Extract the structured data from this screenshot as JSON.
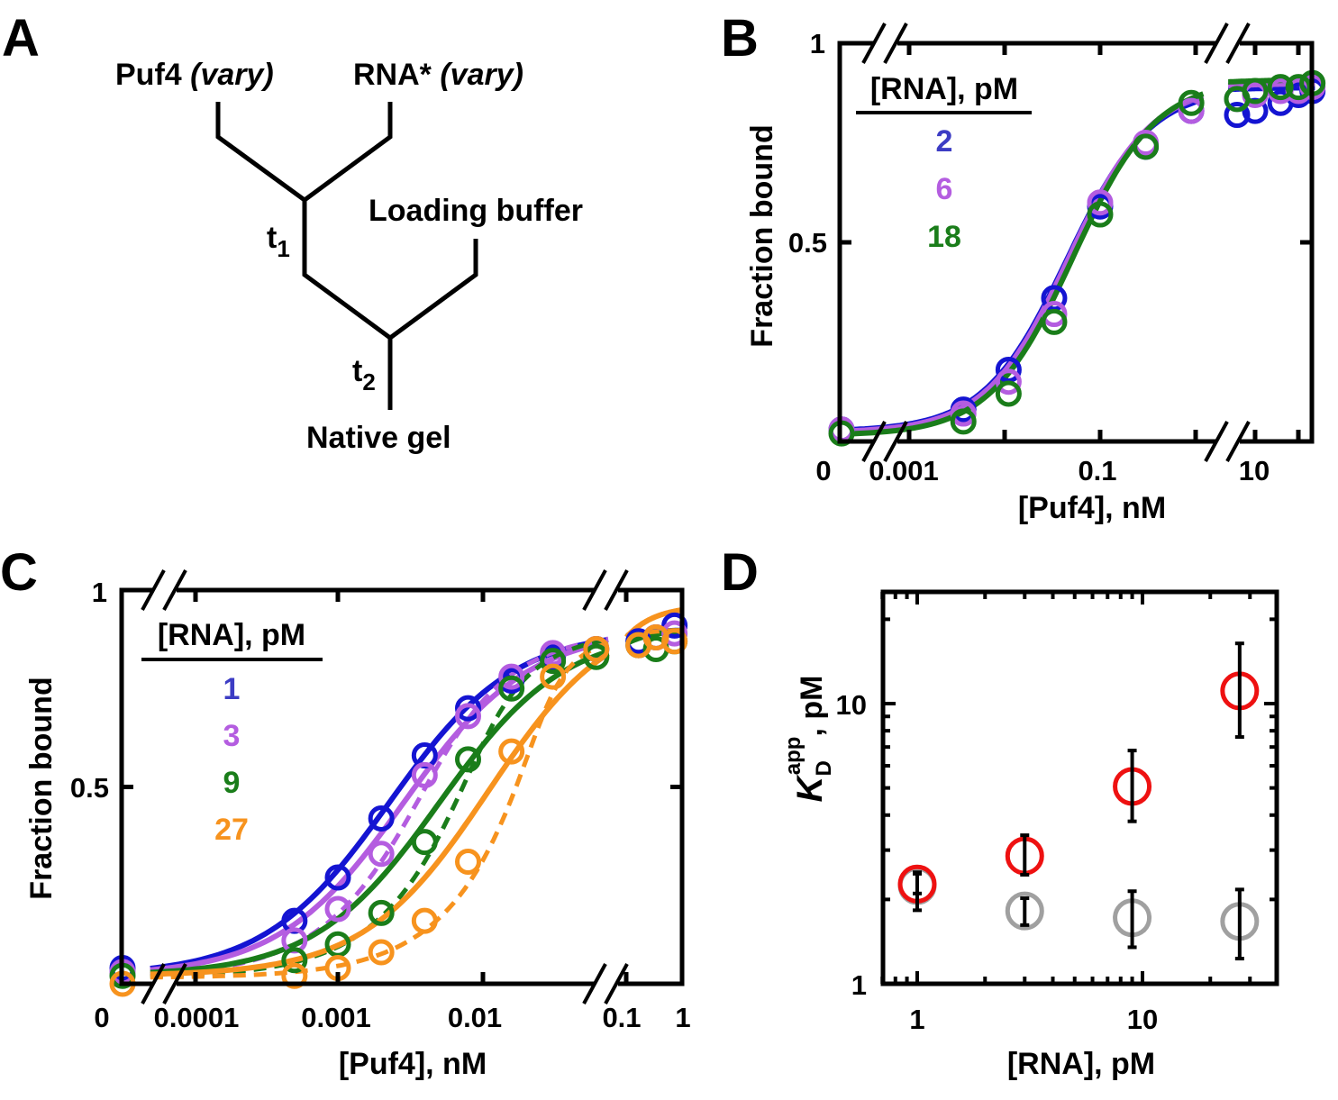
{
  "diagram": {
    "panel_label": "A",
    "puf4": "Puf4",
    "puf4_vary": "(vary)",
    "rna": "RNA*",
    "rna_vary": "(vary)",
    "loading_buffer": "Loading buffer",
    "t": "t",
    "t1_sub": "1",
    "t2_sub": "2",
    "native_gel": "Native gel"
  },
  "chart_data": [
    {
      "panel_label": "B",
      "type": "line",
      "xlabel": "[Puf4], nM",
      "ylabel": "Fraction bound",
      "x_scale": "log, broken axis with zero point",
      "xticks": [
        "0",
        "0.001",
        "0.1",
        "10"
      ],
      "yticks": [
        "1",
        "0.5"
      ],
      "ylim": [
        0,
        1
      ],
      "legend_title": "[RNA], pM",
      "legend_placement": "top-left",
      "x": [
        0,
        0.0037,
        0.011,
        0.033,
        0.1,
        0.3,
        0.9,
        7.5,
        10,
        15,
        20,
        25
      ],
      "series": [
        {
          "name": "2",
          "color": "#1414d2",
          "label_color": "#3c3cc4",
          "values": [
            0.03,
            0.08,
            0.18,
            0.36,
            0.59,
            0.74,
            0.83,
            0.82,
            0.83,
            0.85,
            0.87,
            0.88
          ]
        },
        {
          "name": "6",
          "color": "#b45de0",
          "label_color": "#b45de0",
          "values": [
            0.03,
            0.07,
            0.15,
            0.32,
            0.6,
            0.75,
            0.83,
            0.86,
            0.87,
            0.88,
            0.88,
            0.89
          ]
        },
        {
          "name": "18",
          "color": "#1a7d1a",
          "label_color": "#1a7d1a",
          "values": [
            0.02,
            0.05,
            0.12,
            0.3,
            0.57,
            0.74,
            0.85,
            0.86,
            0.88,
            0.89,
            0.89,
            0.9
          ]
        }
      ]
    },
    {
      "panel_label": "C",
      "type": "line",
      "xlabel": "[Puf4], nM",
      "ylabel": "Fraction bound",
      "x_scale": "log, broken axis with zero point",
      "xticks": [
        "0",
        "0.0001",
        "0.001",
        "0.01",
        "0.1",
        "1"
      ],
      "yticks": [
        "1",
        "0.5"
      ],
      "ylim": [
        0,
        1
      ],
      "legend_title": "[RNA], pM",
      "legend_placement": "top-left",
      "line_styles": [
        "solid",
        "dashed"
      ],
      "x": [
        0,
        0.0005,
        0.001,
        0.002,
        0.004,
        0.008,
        0.016,
        0.031,
        0.062,
        0.19,
        0.37,
        0.75
      ],
      "series": [
        {
          "name": "1",
          "color": "#1414d2",
          "label_color": "#3c3cc4",
          "values": [
            0.04,
            0.16,
            0.27,
            0.42,
            0.58,
            0.7,
            0.77,
            0.83,
            0.85,
            0.87,
            0.88,
            0.91
          ]
        },
        {
          "name": "3",
          "color": "#b45de0",
          "label_color": "#b45de0",
          "values": [
            0.03,
            0.11,
            0.19,
            0.33,
            0.53,
            0.68,
            0.78,
            0.84,
            0.85,
            0.86,
            0.88,
            0.89
          ]
        },
        {
          "name": "9",
          "color": "#1a7d1a",
          "label_color": "#1a7d1a",
          "values": [
            0.02,
            0.06,
            0.1,
            0.18,
            0.36,
            0.57,
            0.75,
            0.82,
            0.83,
            0.86,
            0.85,
            0.87
          ]
        },
        {
          "name": "27",
          "color": "#f7931e",
          "label_color": "#f7931e",
          "values": [
            0.0,
            0.02,
            0.04,
            0.08,
            0.16,
            0.31,
            0.59,
            0.78,
            0.85,
            0.86,
            0.88,
            0.87
          ]
        }
      ]
    },
    {
      "panel_label": "D",
      "type": "scatter",
      "xlabel": "[RNA], pM",
      "ylabel_main": "K",
      "ylabel_sub": "D",
      "ylabel_sup": "app",
      "ylabel_unit": ", pM",
      "x_scale": "log",
      "y_scale": "log",
      "xticks": [
        "1",
        "10"
      ],
      "yticks": [
        "1",
        "10"
      ],
      "xlim": [
        0.7,
        39
      ],
      "ylim": [
        1,
        25
      ],
      "x": [
        1,
        3,
        9,
        27
      ],
      "series": [
        {
          "color": "#ee1111",
          "values": [
            2.27,
            2.86,
            5.06,
            11.1
          ],
          "err_low": [
            2.1,
            2.45,
            3.8,
            7.6
          ],
          "err_high": [
            2.5,
            3.39,
            6.8,
            16.4
          ]
        },
        {
          "color": "#a0a0a0",
          "values": [
            2.24,
            1.82,
            1.72,
            1.67
          ],
          "err_low": [
            1.83,
            1.62,
            1.35,
            1.23
          ],
          "err_high": [
            2.47,
            2.02,
            2.14,
            2.17
          ]
        }
      ]
    }
  ]
}
